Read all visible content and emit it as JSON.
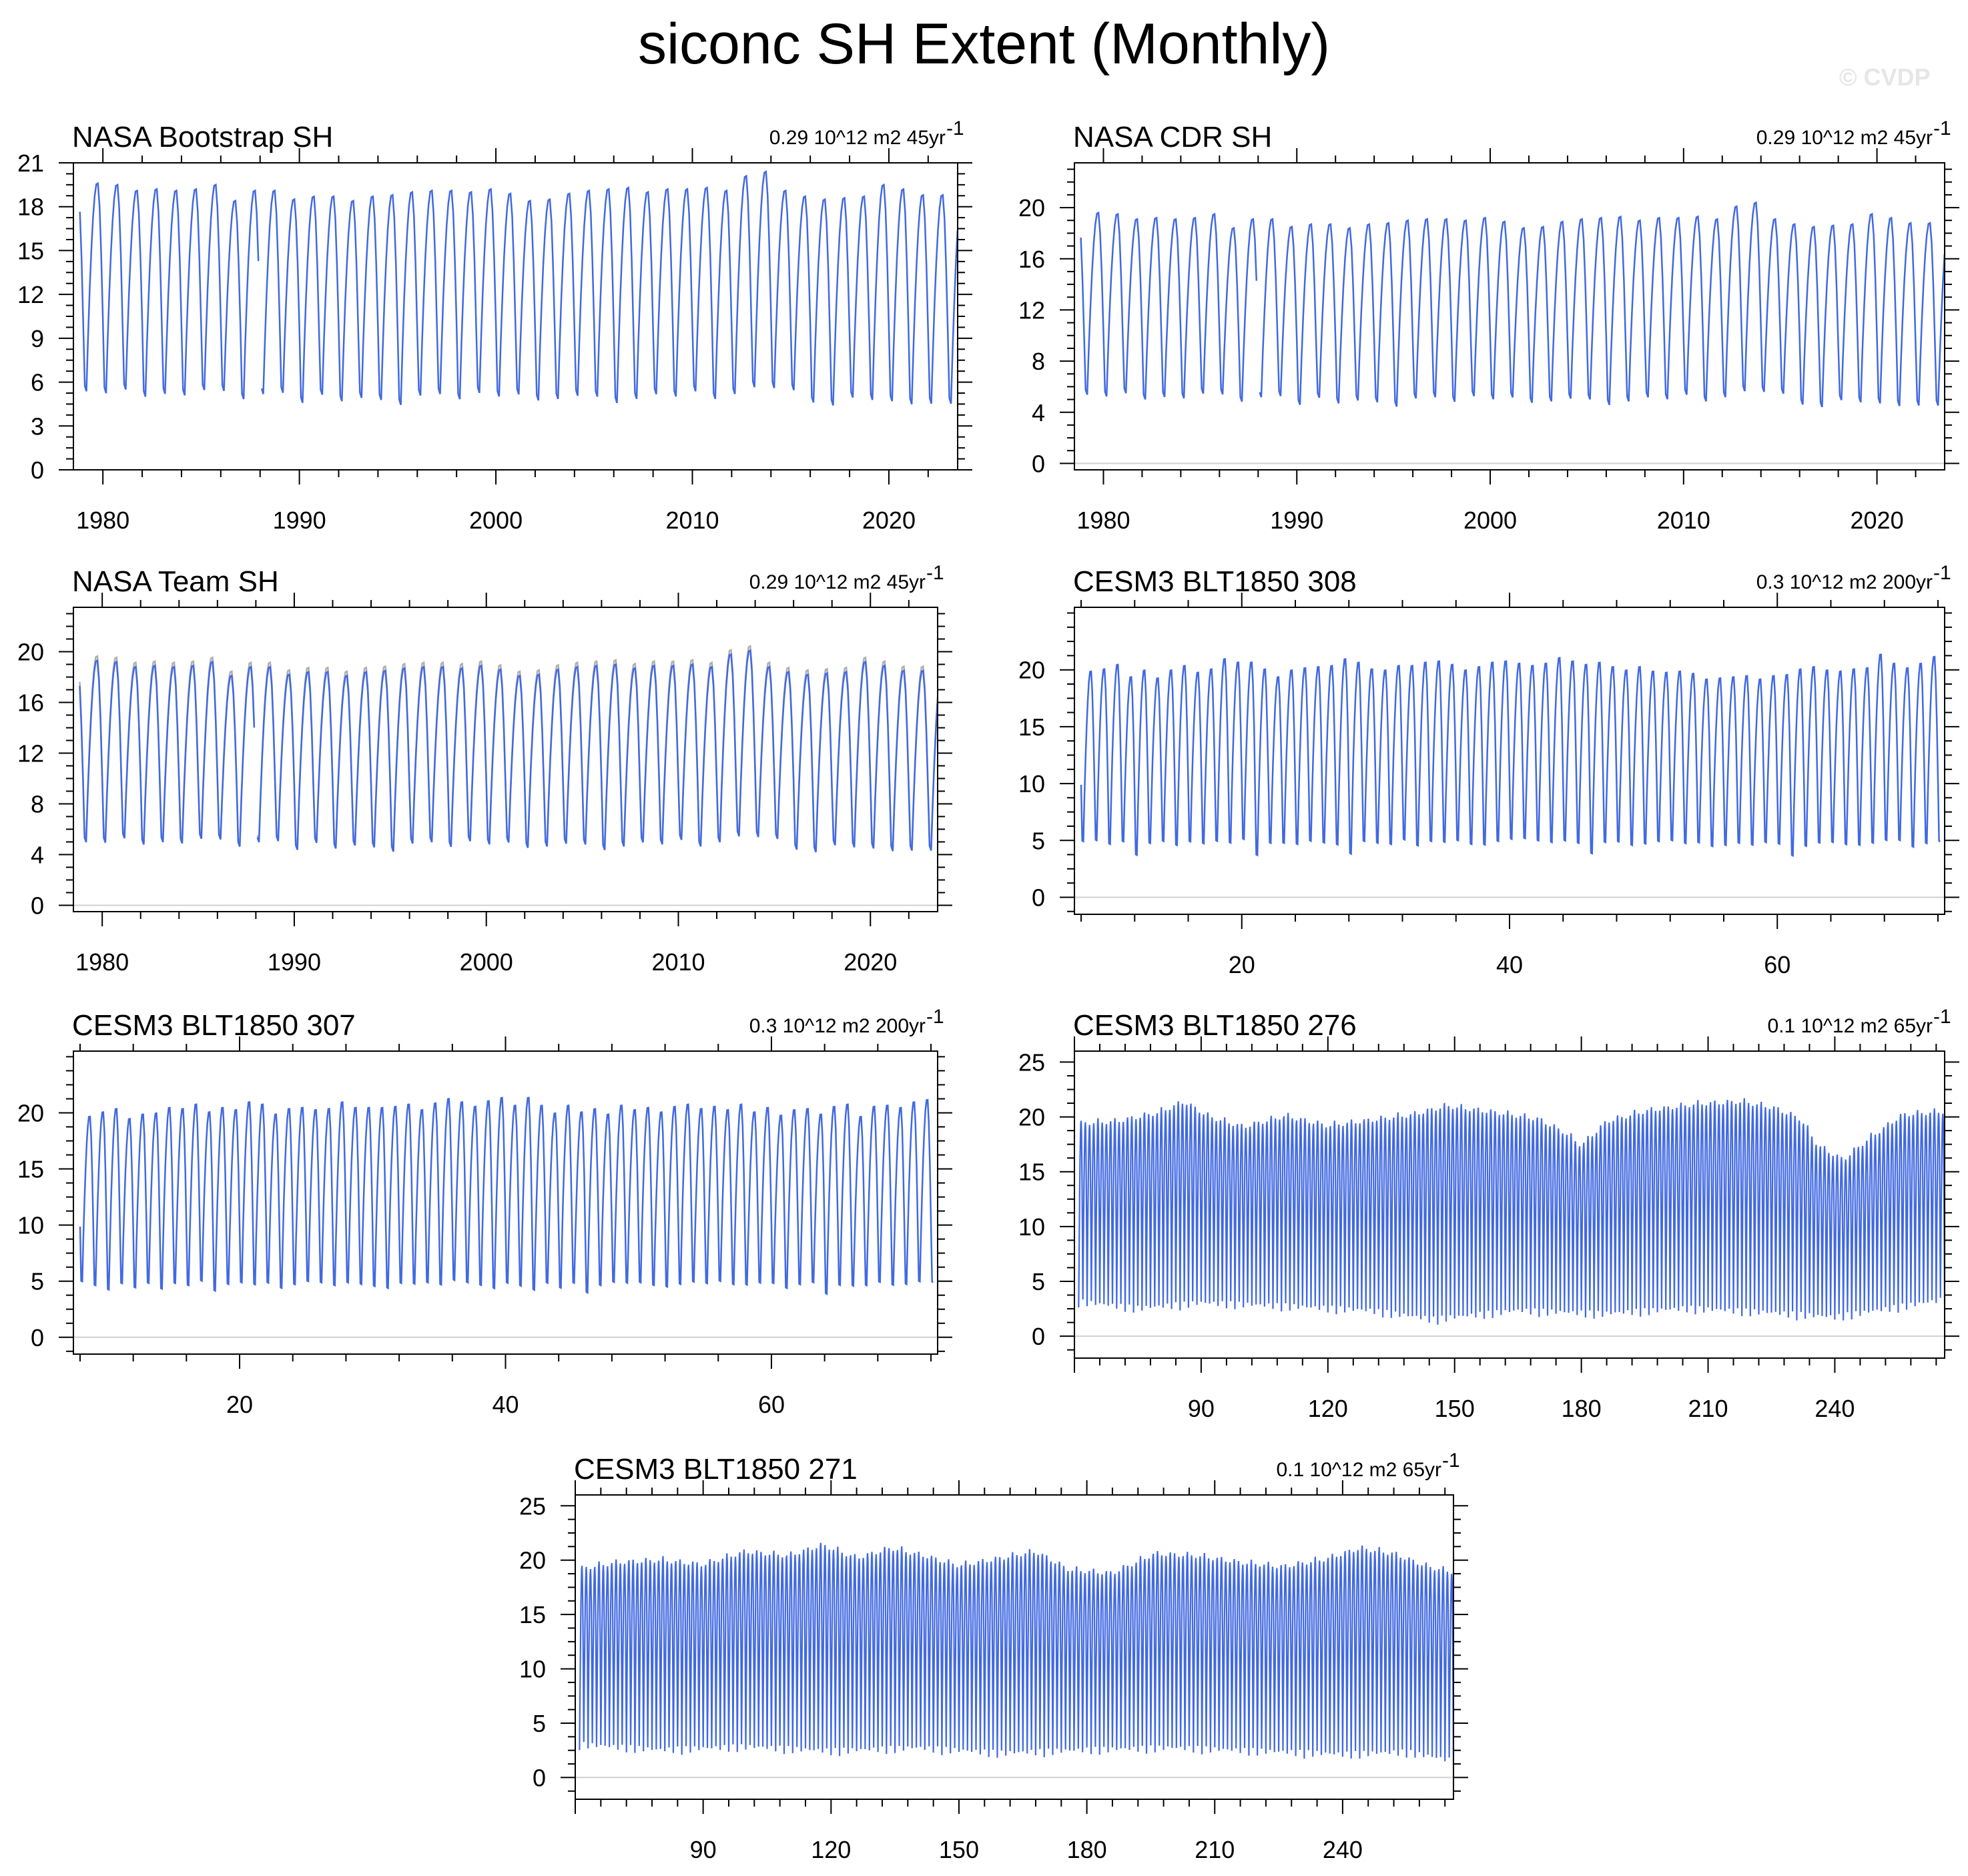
{
  "title": "siconc SH Extent (Monthly)",
  "watermark": "© CVDP",
  "colors": {
    "series": "#4169e1",
    "obs_reference": "#b0b0b0",
    "zero_line": "#d0d0d0",
    "frame": "#000000"
  },
  "chart_data": [
    {
      "type": "line",
      "title": "NASA Bootstrap SH",
      "stat": "0.29 10^12 m2 45yr",
      "stat_superscript": "-1",
      "x_start": 1978.83,
      "x_end": 2023.5,
      "xlim": [
        1978.5,
        2023.5
      ],
      "xticks": [
        1980,
        1990,
        2000,
        2010,
        2020
      ],
      "ylim": [
        0,
        21
      ],
      "yticks": [
        0,
        3,
        6,
        9,
        12,
        15,
        18,
        21
      ],
      "zero_line": false,
      "gap": [
        1987.92,
        1988.0
      ],
      "summer_minima": [
        3.5,
        3.6,
        3.4,
        3.7,
        3.2,
        3.4,
        3.3,
        3.7,
        3.6,
        3.1,
        3.4,
        3.5,
        2.8,
        3.4,
        2.9,
        3.2,
        3.0,
        2.6,
        3.3,
        3.4,
        3.0,
        3.5,
        3.2,
        3.4,
        3.0,
        3.1,
        3.3,
        3.2,
        2.7,
        3.0,
        3.4,
        3.2,
        3.6,
        3.0,
        3.4,
        3.8,
        3.7,
        3.7,
        2.8,
        2.6,
        3.2,
        3.0,
        2.8,
        2.6,
        2.7
      ],
      "winter_maxima": [
        19.3,
        19.7,
        19.6,
        19.2,
        19.3,
        19.2,
        19.3,
        19.6,
        18.5,
        19.2,
        19.2,
        18.6,
        18.8,
        18.8,
        18.5,
        18.8,
        18.9,
        19.1,
        19.2,
        19.2,
        19.1,
        19.3,
        19.0,
        18.5,
        18.6,
        19.0,
        19.2,
        19.3,
        19.4,
        19.1,
        19.3,
        19.3,
        19.4,
        19.2,
        20.2,
        20.5,
        19.2,
        18.8,
        18.6,
        18.7,
        18.8,
        19.6,
        19.3,
        18.9
      ],
      "reference_shown": false
    },
    {
      "type": "line",
      "title": "NASA CDR SH",
      "stat": "0.29 10^12 m2 45yr",
      "stat_superscript": "-1",
      "x_start": 1978.83,
      "x_end": 2023.5,
      "xlim": [
        1978.5,
        2023.5
      ],
      "xticks": [
        1980,
        1990,
        2000,
        2010,
        2020
      ],
      "ylim": [
        -0.5,
        23.5
      ],
      "yticks": [
        0,
        4,
        8,
        12,
        16,
        20
      ],
      "zero_line": true,
      "gap": [
        1987.92,
        1988.0
      ],
      "summer_minima": [
        3.5,
        3.6,
        3.4,
        3.7,
        3.2,
        3.4,
        3.3,
        3.7,
        3.6,
        3.1,
        3.4,
        3.5,
        2.8,
        3.4,
        2.9,
        3.2,
        3.0,
        2.6,
        3.3,
        3.4,
        3.0,
        3.5,
        3.2,
        3.4,
        3.0,
        3.1,
        3.3,
        3.2,
        2.7,
        3.0,
        3.4,
        3.2,
        3.6,
        3.0,
        3.4,
        3.8,
        3.7,
        3.7,
        2.8,
        2.6,
        3.2,
        3.0,
        2.8,
        2.6,
        2.7
      ],
      "winter_maxima": [
        19.3,
        19.7,
        19.6,
        19.2,
        19.3,
        19.2,
        19.3,
        19.6,
        18.5,
        19.2,
        19.2,
        18.6,
        18.8,
        18.8,
        18.5,
        18.8,
        18.9,
        19.1,
        19.2,
        19.2,
        19.1,
        19.3,
        19.0,
        18.5,
        18.6,
        19.0,
        19.2,
        19.3,
        19.4,
        19.1,
        19.3,
        19.3,
        19.4,
        19.2,
        20.2,
        20.5,
        19.2,
        18.8,
        18.6,
        18.7,
        18.8,
        19.6,
        19.3,
        18.9
      ],
      "reference_shown": false
    },
    {
      "type": "line",
      "title": "NASA Team SH",
      "stat": "0.29 10^12 m2 45yr",
      "stat_superscript": "-1",
      "x_start": 1978.83,
      "x_end": 2023.5,
      "xlim": [
        1978.5,
        2023.5
      ],
      "xticks": [
        1980,
        1990,
        2000,
        2010,
        2020
      ],
      "ylim": [
        -0.5,
        23.5
      ],
      "yticks": [
        0,
        4,
        8,
        12,
        16,
        20
      ],
      "zero_line": true,
      "gap": [
        1987.92,
        1988.0
      ],
      "summer_minima": [
        3.5,
        3.2,
        3.1,
        3.5,
        3.0,
        3.2,
        3.1,
        3.5,
        3.4,
        2.9,
        3.2,
        3.3,
        2.6,
        3.2,
        2.7,
        3.0,
        2.8,
        2.4,
        3.1,
        3.2,
        2.8,
        3.3,
        3.0,
        3.2,
        2.8,
        2.9,
        3.1,
        3.0,
        2.5,
        2.8,
        3.2,
        3.0,
        3.4,
        2.8,
        3.2,
        3.6,
        3.5,
        3.5,
        2.6,
        2.4,
        3.0,
        2.8,
        2.6,
        2.4,
        2.5
      ],
      "winter_maxima": [
        18.9,
        19.4,
        19.3,
        18.9,
        19.0,
        18.9,
        19.0,
        19.3,
        18.2,
        18.9,
        18.9,
        18.3,
        18.5,
        18.5,
        18.2,
        18.5,
        18.6,
        18.8,
        18.9,
        18.9,
        18.8,
        19.0,
        18.7,
        18.2,
        18.3,
        18.7,
        18.9,
        19.0,
        19.1,
        18.8,
        19.0,
        19.0,
        19.1,
        18.9,
        19.9,
        20.2,
        18.9,
        18.5,
        18.3,
        18.4,
        18.5,
        19.3,
        19.0,
        18.6
      ],
      "reference_shown": true
    },
    {
      "type": "line",
      "title": "CESM3 BLT1850 308",
      "stat": "0.3 10^12 m2 200yr",
      "stat_superscript": "-1",
      "x_start": 8.0,
      "x_end": 72.2,
      "xlim": [
        7.5,
        72.5
      ],
      "xticks": [
        20,
        40,
        60
      ],
      "ylim": [
        -1.5,
        25.5
      ],
      "yticks": [
        0,
        5,
        10,
        15,
        20
      ],
      "zero_line": true,
      "summer_minima": [
        2.8,
        2.9,
        2.5,
        2.7,
        1.5,
        2.6,
        2.9,
        2.4,
        2.7,
        2.6,
        2.8,
        2.5,
        2.9,
        1.3,
        2.6,
        2.7,
        2.5,
        2.8,
        2.6,
        2.4,
        1.4,
        2.7,
        2.6,
        2.5,
        2.9,
        2.3,
        2.7,
        2.6,
        2.8,
        2.5,
        2.4,
        2.7,
        2.9,
        3.0,
        2.8,
        2.6,
        2.7,
        2.5,
        1.5,
        2.6,
        2.7,
        2.4,
        2.5,
        2.8,
        2.9,
        2.6,
        2.7,
        2.4,
        2.5,
        2.7,
        2.5,
        2.8,
        2.6,
        1.4,
        2.3,
        2.6,
        2.7,
        2.5,
        2.4,
        2.6,
        2.7,
        2.8,
        2.2,
        2.5,
        2.6
      ],
      "winter_maxima": [
        20.0,
        20.2,
        20.6,
        19.5,
        20.1,
        19.4,
        20.1,
        20.5,
        19.9,
        20.2,
        21.1,
        20.8,
        20.8,
        20.2,
        19.5,
        20.1,
        20.3,
        20.4,
        20.5,
        21.1,
        20.8,
        20.2,
        20.1,
        20.5,
        20.5,
        20.8,
        20.9,
        20.6,
        20.1,
        20.4,
        20.8,
        20.9,
        20.7,
        20.5,
        20.7,
        21.2,
        20.9,
        20.6,
        20.8,
        20.4,
        20.1,
        20.4,
        20.0,
        19.9,
        20.0,
        19.8,
        19.3,
        19.4,
        19.5,
        19.6,
        19.3,
        19.6,
        19.7,
        20.2,
        20.4,
        20.1,
        20.0,
        20.2,
        20.3,
        21.5,
        20.7,
        20.3,
        20.7,
        21.3
      ],
      "reference_shown": false
    },
    {
      "type": "line",
      "title": "CESM3 BLT1850 307",
      "stat": "0.3 10^12 m2 200yr",
      "stat_superscript": "-1",
      "x_start": 8.0,
      "x_end": 72.2,
      "xlim": [
        7.5,
        72.5
      ],
      "xticks": [
        20,
        40,
        60
      ],
      "ylim": [
        -1.5,
        25.5
      ],
      "yticks": [
        0,
        5,
        10,
        15,
        20
      ],
      "zero_line": true,
      "summer_minima": [
        2.9,
        2.5,
        2.0,
        2.6,
        2.3,
        2.7,
        2.1,
        2.6,
        2.4,
        2.8,
        1.9,
        2.5,
        2.7,
        2.4,
        2.6,
        2.2,
        2.5,
        2.8,
        2.7,
        2.4,
        2.6,
        2.5,
        2.3,
        2.1,
        2.6,
        2.5,
        2.7,
        2.4,
        2.8,
        2.6,
        2.4,
        2.0,
        2.5,
        2.3,
        1.8,
        2.6,
        2.2,
        2.6,
        1.7,
        2.4,
        2.8,
        2.6,
        2.7,
        2.4,
        2.3,
        2.5,
        2.7,
        2.6,
        2.8,
        2.5,
        2.4,
        2.7,
        2.6,
        2.2,
        2.5,
        2.7,
        1.6,
        2.4,
        2.3,
        2.5,
        2.7,
        2.4,
        2.5,
        2.7,
        2.6
      ],
      "winter_maxima": [
        19.8,
        20.2,
        20.5,
        19.6,
        20.0,
        20.1,
        20.6,
        20.5,
        20.9,
        20.2,
        20.6,
        20.4,
        21.1,
        20.9,
        20.0,
        20.5,
        20.6,
        20.4,
        20.5,
        21.1,
        20.6,
        20.6,
        20.6,
        20.7,
        20.9,
        20.4,
        21.0,
        21.4,
        21.1,
        20.7,
        21.2,
        21.5,
        20.8,
        21.5,
        20.8,
        20.1,
        20.8,
        20.2,
        20.5,
        20.0,
        20.8,
        20.4,
        20.6,
        20.2,
        20.7,
        20.9,
        20.5,
        20.7,
        20.4,
        20.9,
        20.2,
        20.6,
        19.9,
        20.4,
        20.5,
        20.0,
        20.7,
        20.9,
        19.8,
        20.7,
        20.8,
        20.6,
        21.1,
        21.3
      ],
      "reference_shown": false
    },
    {
      "type": "line",
      "title": "CESM3 BLT1850 276",
      "stat": "0.1 10^12 m2 65yr",
      "stat_superscript": "-1",
      "x_start": 61.0,
      "x_end": 266.0,
      "xlim": [
        60,
        266
      ],
      "xticks": [
        90,
        120,
        150,
        180,
        210,
        240
      ],
      "ylim": [
        -2,
        26
      ],
      "yticks": [
        0,
        5,
        10,
        15,
        20,
        25
      ],
      "zero_line": true,
      "envelope_max": [
        [
          61,
          19.8
        ],
        [
          70,
          20.0
        ],
        [
          80,
          20.8
        ],
        [
          86,
          21.8
        ],
        [
          92,
          20.4
        ],
        [
          100,
          19.5
        ],
        [
          110,
          20.5
        ],
        [
          120,
          19.6
        ],
        [
          130,
          20.1
        ],
        [
          140,
          20.6
        ],
        [
          148,
          21.4
        ],
        [
          160,
          20.8
        ],
        [
          170,
          20.2
        ],
        [
          176,
          19.0
        ],
        [
          180,
          17.8
        ],
        [
          186,
          20.0
        ],
        [
          196,
          21.0
        ],
        [
          208,
          21.6
        ],
        [
          218,
          21.8
        ],
        [
          226,
          21.2
        ],
        [
          232,
          20.2
        ],
        [
          236,
          17.8
        ],
        [
          242,
          16.5
        ],
        [
          248,
          18.4
        ],
        [
          256,
          20.6
        ],
        [
          266,
          20.9
        ]
      ],
      "envelope_min": [
        [
          61,
          2.6
        ],
        [
          75,
          2.0
        ],
        [
          90,
          2.5
        ],
        [
          110,
          2.2
        ],
        [
          130,
          1.8
        ],
        [
          145,
          1.0
        ],
        [
          165,
          1.8
        ],
        [
          185,
          1.5
        ],
        [
          205,
          2.0
        ],
        [
          225,
          1.6
        ],
        [
          240,
          1.2
        ],
        [
          250,
          1.8
        ],
        [
          266,
          2.8
        ]
      ],
      "reference_shown": false
    },
    {
      "type": "line",
      "title": "CESM3 BLT1850 271",
      "stat": "0.1 10^12 m2 65yr",
      "stat_superscript": "-1",
      "x_start": 61.0,
      "x_end": 266.0,
      "xlim": [
        60,
        266
      ],
      "xticks": [
        90,
        120,
        150,
        180,
        210,
        240
      ],
      "ylim": [
        -2,
        26
      ],
      "yticks": [
        0,
        5,
        10,
        15,
        20,
        25
      ],
      "zero_line": true,
      "envelope_max": [
        [
          61,
          19.6
        ],
        [
          70,
          20.2
        ],
        [
          80,
          20.4
        ],
        [
          90,
          20.0
        ],
        [
          100,
          21.2
        ],
        [
          110,
          20.8
        ],
        [
          118,
          21.8
        ],
        [
          126,
          20.6
        ],
        [
          134,
          21.5
        ],
        [
          142,
          20.8
        ],
        [
          150,
          19.9
        ],
        [
          160,
          20.6
        ],
        [
          168,
          21.2
        ],
        [
          176,
          19.5
        ],
        [
          186,
          19.2
        ],
        [
          196,
          21.0
        ],
        [
          206,
          20.8
        ],
        [
          216,
          20.2
        ],
        [
          226,
          19.8
        ],
        [
          236,
          20.5
        ],
        [
          244,
          21.5
        ],
        [
          252,
          21.0
        ],
        [
          260,
          19.8
        ],
        [
          266,
          19.3
        ]
      ],
      "envelope_min": [
        [
          61,
          2.5
        ],
        [
          80,
          2.0
        ],
        [
          100,
          2.3
        ],
        [
          120,
          1.9
        ],
        [
          140,
          2.2
        ],
        [
          160,
          1.7
        ],
        [
          180,
          2.0
        ],
        [
          200,
          2.2
        ],
        [
          220,
          1.9
        ],
        [
          240,
          1.6
        ],
        [
          255,
          1.8
        ],
        [
          266,
          1.0
        ]
      ],
      "reference_shown": false
    }
  ]
}
